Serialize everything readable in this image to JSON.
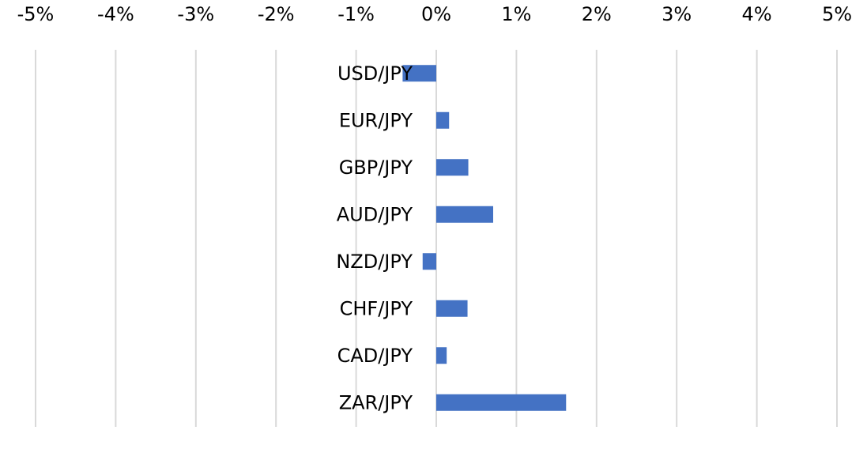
{
  "chart_data": {
    "type": "bar",
    "orientation": "horizontal",
    "categories": [
      "USD/JPY",
      "EUR/JPY",
      "GBP/JPY",
      "AUD/JPY",
      "NZD/JPY",
      "CHF/JPY",
      "CAD/JPY",
      "ZAR/JPY"
    ],
    "values": [
      -0.42,
      0.16,
      0.4,
      0.71,
      -0.17,
      0.39,
      0.13,
      1.62
    ],
    "xlim": [
      -5,
      5
    ],
    "x_ticks": [
      -5,
      -4,
      -3,
      -2,
      -1,
      0,
      1,
      2,
      3,
      4,
      5
    ],
    "x_tick_labels": [
      "-5%",
      "-4%",
      "-3%",
      "-2%",
      "-1%",
      "0%",
      "1%",
      "2%",
      "3%",
      "4%",
      "5%"
    ],
    "x_axis_position": "top",
    "grid": true,
    "legend": "none",
    "title": "",
    "xlabel": "",
    "ylabel": "",
    "colors": {
      "bar": "#4472c4",
      "grid": "#d9d9d9",
      "text": "#000000"
    }
  }
}
